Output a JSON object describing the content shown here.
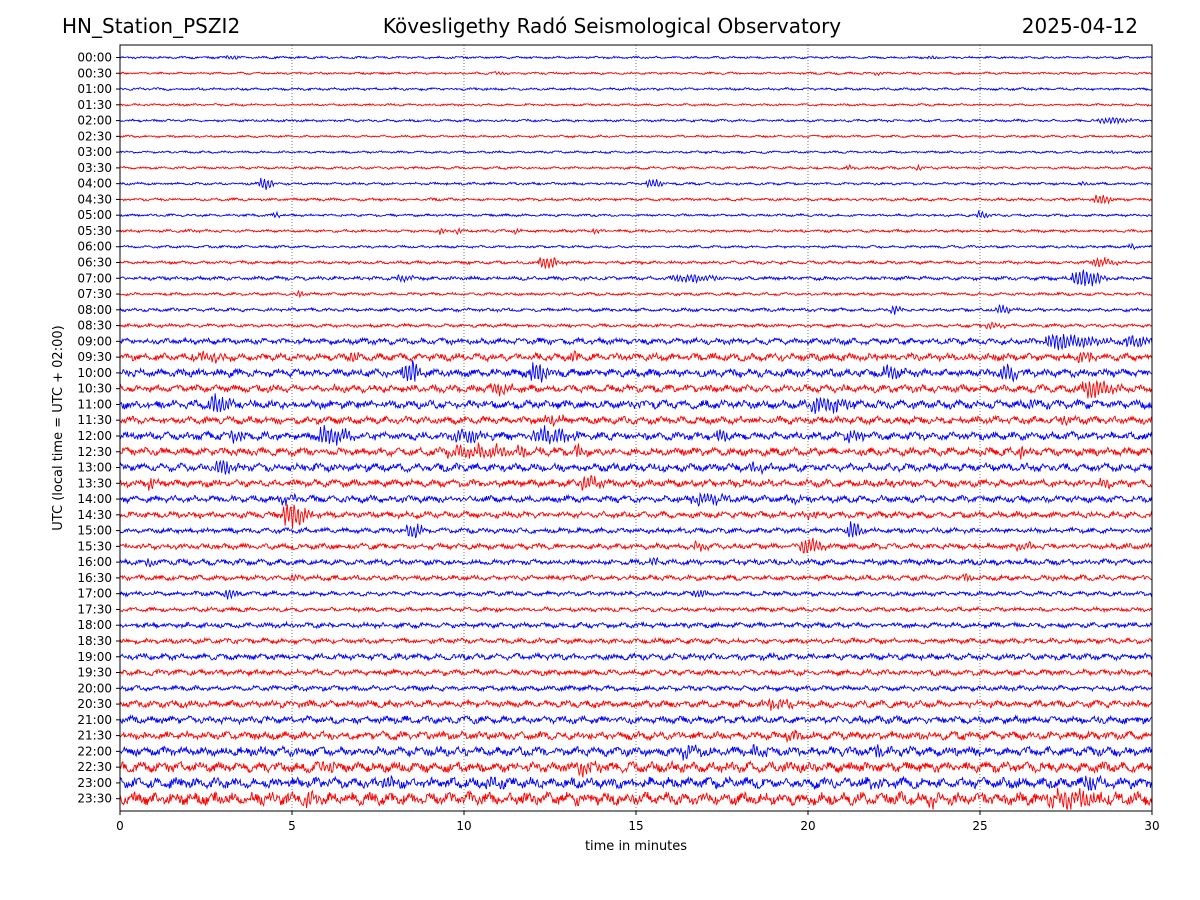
{
  "header": {
    "station": "HN_Station_PSZI2",
    "title": "Kövesligethy Radó Seismological Observatory",
    "date": "2025-04-12"
  },
  "chart_data": {
    "type": "line",
    "title": "Kövesligethy Radó Seismological Observatory",
    "xlabel": "time in minutes",
    "ylabel": "UTC (local time = UTC + 02:00)",
    "xlim": [
      0,
      30
    ],
    "x_ticks": [
      0,
      5,
      10,
      15,
      20,
      25,
      30
    ],
    "vertical_grid_minutes": [
      5,
      10,
      15,
      20,
      25
    ],
    "grid": "vertical dotted",
    "colors": {
      "even_rows": "#0000ff",
      "odd_rows": "#ff0000",
      "grid": "#555555"
    },
    "rows": [
      {
        "label": "00:00",
        "noise": 0.8,
        "events": [
          {
            "t": 3.2,
            "a": 2,
            "w": 0.3
          },
          {
            "t": 23.6,
            "a": 2,
            "w": 0.3
          }
        ]
      },
      {
        "label": "00:30",
        "noise": 0.8,
        "events": [
          {
            "t": 11.0,
            "a": 1.5,
            "w": 0.3
          },
          {
            "t": 22.0,
            "a": 1.5,
            "w": 0.4
          }
        ]
      },
      {
        "label": "01:00",
        "noise": 0.9,
        "events": []
      },
      {
        "label": "01:30",
        "noise": 0.8,
        "events": []
      },
      {
        "label": "02:00",
        "noise": 0.9,
        "events": [
          {
            "t": 28.8,
            "a": 3,
            "w": 1.0
          }
        ]
      },
      {
        "label": "02:30",
        "noise": 0.8,
        "events": []
      },
      {
        "label": "03:00",
        "noise": 0.8,
        "events": [
          {
            "t": 28.8,
            "a": 2,
            "w": 0.2
          }
        ]
      },
      {
        "label": "03:30",
        "noise": 0.9,
        "events": [
          {
            "t": 21.2,
            "a": 3,
            "w": 0.2
          },
          {
            "t": 23.2,
            "a": 3,
            "w": 0.15
          }
        ]
      },
      {
        "label": "04:00",
        "noise": 0.9,
        "events": [
          {
            "t": 4.2,
            "a": 6,
            "w": 0.4
          },
          {
            "t": 15.5,
            "a": 4,
            "w": 0.5
          },
          {
            "t": 28.0,
            "a": 3,
            "w": 0.2
          }
        ]
      },
      {
        "label": "04:30",
        "noise": 1.0,
        "events": [
          {
            "t": 28.5,
            "a": 5,
            "w": 0.5
          }
        ]
      },
      {
        "label": "05:00",
        "noise": 0.9,
        "events": [
          {
            "t": 4.5,
            "a": 3,
            "w": 0.2
          },
          {
            "t": 25.0,
            "a": 4,
            "w": 0.3
          }
        ]
      },
      {
        "label": "05:30",
        "noise": 1.0,
        "events": [
          {
            "t": 9.3,
            "a": 4,
            "w": 0.2
          },
          {
            "t": 9.8,
            "a": 3,
            "w": 0.2
          },
          {
            "t": 11.5,
            "a": 3,
            "w": 0.2
          },
          {
            "t": 13.8,
            "a": 3,
            "w": 0.2
          }
        ]
      },
      {
        "label": "06:00",
        "noise": 0.9,
        "events": [
          {
            "t": 29.4,
            "a": 3,
            "w": 0.2
          }
        ]
      },
      {
        "label": "06:30",
        "noise": 1.1,
        "events": [
          {
            "t": 12.4,
            "a": 6,
            "w": 0.6
          },
          {
            "t": 28.5,
            "a": 4,
            "w": 0.6
          }
        ]
      },
      {
        "label": "07:00",
        "noise": 1.3,
        "events": [
          {
            "t": 8.2,
            "a": 3,
            "w": 0.5
          },
          {
            "t": 16.5,
            "a": 4,
            "w": 1.2
          },
          {
            "t": 28.0,
            "a": 9,
            "w": 0.8
          }
        ]
      },
      {
        "label": "07:30",
        "noise": 1.0,
        "events": [
          {
            "t": 5.2,
            "a": 3,
            "w": 0.2
          }
        ]
      },
      {
        "label": "08:00",
        "noise": 1.2,
        "events": [
          {
            "t": 22.5,
            "a": 4,
            "w": 0.3
          },
          {
            "t": 25.6,
            "a": 4,
            "w": 0.4
          }
        ]
      },
      {
        "label": "08:30",
        "noise": 1.2,
        "events": [
          {
            "t": 25.4,
            "a": 3,
            "w": 0.6
          }
        ]
      },
      {
        "label": "09:00",
        "noise": 2.2,
        "events": [
          {
            "t": 27.5,
            "a": 7,
            "w": 1.5
          },
          {
            "t": 29.5,
            "a": 6,
            "w": 0.6
          }
        ]
      },
      {
        "label": "09:30",
        "noise": 2.6,
        "events": [
          {
            "t": 2.5,
            "a": 4,
            "w": 1.0
          },
          {
            "t": 6.8,
            "a": 4,
            "w": 0.4
          },
          {
            "t": 13.2,
            "a": 4,
            "w": 0.3
          },
          {
            "t": 28.0,
            "a": 5,
            "w": 0.4
          }
        ]
      },
      {
        "label": "10:00",
        "noise": 2.8,
        "events": [
          {
            "t": 8.4,
            "a": 11,
            "w": 0.5
          },
          {
            "t": 12.1,
            "a": 9,
            "w": 0.5
          },
          {
            "t": 22.4,
            "a": 6,
            "w": 0.5
          },
          {
            "t": 25.8,
            "a": 7,
            "w": 0.5
          }
        ]
      },
      {
        "label": "10:30",
        "noise": 2.6,
        "events": [
          {
            "t": 11.0,
            "a": 5,
            "w": 0.6
          },
          {
            "t": 28.3,
            "a": 8,
            "w": 0.8
          }
        ]
      },
      {
        "label": "11:00",
        "noise": 3.0,
        "events": [
          {
            "t": 2.8,
            "a": 10,
            "w": 0.6
          },
          {
            "t": 20.5,
            "a": 8,
            "w": 1.0
          },
          {
            "t": 26.5,
            "a": 5,
            "w": 0.3
          }
        ]
      },
      {
        "label": "11:30",
        "noise": 2.6,
        "events": [
          {
            "t": 12.5,
            "a": 4,
            "w": 0.6
          },
          {
            "t": 27.5,
            "a": 4,
            "w": 0.4
          }
        ]
      },
      {
        "label": "12:00",
        "noise": 2.8,
        "events": [
          {
            "t": 3.3,
            "a": 5,
            "w": 0.6
          },
          {
            "t": 6.1,
            "a": 9,
            "w": 0.8
          },
          {
            "t": 10.0,
            "a": 6,
            "w": 0.8
          },
          {
            "t": 12.4,
            "a": 8,
            "w": 1.0
          },
          {
            "t": 17.5,
            "a": 5,
            "w": 0.4
          },
          {
            "t": 21.3,
            "a": 5,
            "w": 0.4
          }
        ]
      },
      {
        "label": "12:30",
        "noise": 2.8,
        "events": [
          {
            "t": 10.5,
            "a": 5,
            "w": 2.5
          },
          {
            "t": 13.3,
            "a": 5,
            "w": 0.3
          },
          {
            "t": 26.2,
            "a": 6,
            "w": 0.2
          }
        ]
      },
      {
        "label": "13:00",
        "noise": 2.8,
        "events": [
          {
            "t": 3.0,
            "a": 7,
            "w": 0.6
          },
          {
            "t": 18.5,
            "a": 5,
            "w": 0.5
          }
        ]
      },
      {
        "label": "13:30",
        "noise": 2.6,
        "events": [
          {
            "t": 0.9,
            "a": 5,
            "w": 0.4
          },
          {
            "t": 13.6,
            "a": 7,
            "w": 0.6
          },
          {
            "t": 28.6,
            "a": 4,
            "w": 0.3
          }
        ]
      },
      {
        "label": "14:00",
        "noise": 2.4,
        "events": [
          {
            "t": 4.8,
            "a": 4,
            "w": 0.6
          },
          {
            "t": 17.0,
            "a": 5,
            "w": 1.0
          },
          {
            "t": 19.5,
            "a": 3,
            "w": 0.4
          }
        ]
      },
      {
        "label": "14:30",
        "noise": 2.2,
        "events": [
          {
            "t": 5.0,
            "a": 12,
            "w": 0.7
          },
          {
            "t": 20.0,
            "a": 3,
            "w": 0.4
          },
          {
            "t": 24.8,
            "a": 3,
            "w": 0.3
          }
        ]
      },
      {
        "label": "15:00",
        "noise": 1.8,
        "events": [
          {
            "t": 8.5,
            "a": 7,
            "w": 0.5
          },
          {
            "t": 21.3,
            "a": 9,
            "w": 0.4
          }
        ]
      },
      {
        "label": "15:30",
        "noise": 2.0,
        "events": [
          {
            "t": 16.8,
            "a": 4,
            "w": 0.5
          },
          {
            "t": 20.0,
            "a": 8,
            "w": 0.6
          },
          {
            "t": 26.2,
            "a": 4,
            "w": 0.5
          }
        ]
      },
      {
        "label": "16:00",
        "noise": 2.0,
        "events": [
          {
            "t": 0.8,
            "a": 3,
            "w": 0.5
          },
          {
            "t": 15.5,
            "a": 4,
            "w": 0.3
          }
        ]
      },
      {
        "label": "16:30",
        "noise": 1.8,
        "events": [
          {
            "t": 5.0,
            "a": 4,
            "w": 0.3
          },
          {
            "t": 24.6,
            "a": 3,
            "w": 0.3
          }
        ]
      },
      {
        "label": "17:00",
        "noise": 1.6,
        "events": [
          {
            "t": 3.2,
            "a": 4,
            "w": 0.4
          },
          {
            "t": 16.8,
            "a": 4,
            "w": 0.4
          }
        ]
      },
      {
        "label": "17:30",
        "noise": 1.5,
        "events": []
      },
      {
        "label": "18:00",
        "noise": 1.8,
        "events": []
      },
      {
        "label": "18:30",
        "noise": 1.8,
        "events": []
      },
      {
        "label": "19:00",
        "noise": 2.2,
        "events": []
      },
      {
        "label": "19:30",
        "noise": 2.0,
        "events": []
      },
      {
        "label": "20:00",
        "noise": 1.8,
        "events": []
      },
      {
        "label": "20:30",
        "noise": 2.4,
        "events": [
          {
            "t": 19.0,
            "a": 4,
            "w": 1.0
          }
        ]
      },
      {
        "label": "21:00",
        "noise": 2.6,
        "events": []
      },
      {
        "label": "21:30",
        "noise": 2.8,
        "events": [
          {
            "t": 19.5,
            "a": 4,
            "w": 0.6
          }
        ]
      },
      {
        "label": "22:00",
        "noise": 3.2,
        "events": [
          {
            "t": 16.5,
            "a": 5,
            "w": 0.6
          },
          {
            "t": 18.5,
            "a": 5,
            "w": 0.4
          },
          {
            "t": 22.0,
            "a": 5,
            "w": 0.4
          }
        ]
      },
      {
        "label": "22:30",
        "noise": 3.6,
        "events": [
          {
            "t": 6.0,
            "a": 5,
            "w": 0.4
          },
          {
            "t": 13.5,
            "a": 5,
            "w": 0.6
          }
        ]
      },
      {
        "label": "23:00",
        "noise": 3.8,
        "events": [
          {
            "t": 7.8,
            "a": 5,
            "w": 0.4
          },
          {
            "t": 10.8,
            "a": 6,
            "w": 0.4
          },
          {
            "t": 22.0,
            "a": 5,
            "w": 0.5
          },
          {
            "t": 28.2,
            "a": 6,
            "w": 0.5
          }
        ]
      },
      {
        "label": "23:30",
        "noise": 4.5,
        "events": [
          {
            "t": 5.5,
            "a": 6,
            "w": 0.5
          },
          {
            "t": 23.6,
            "a": 7,
            "w": 0.3
          },
          {
            "t": 27.5,
            "a": 8,
            "w": 1.5
          }
        ]
      }
    ]
  }
}
